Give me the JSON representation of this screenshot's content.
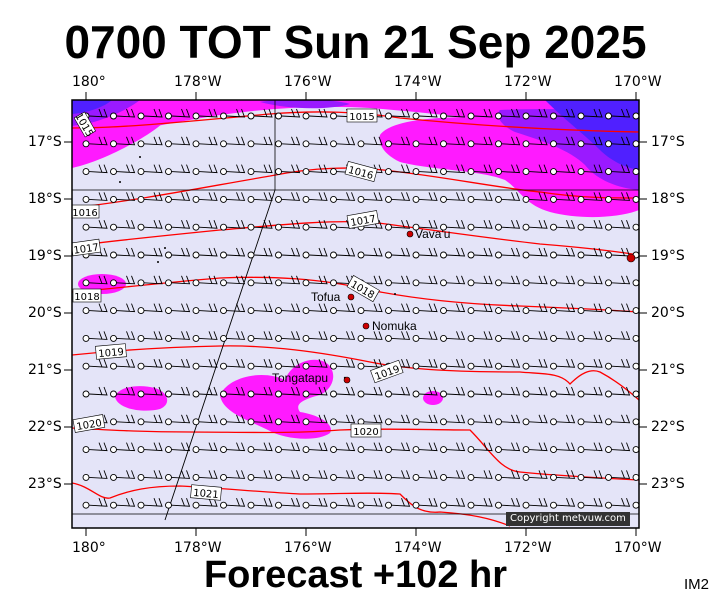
{
  "title": "0700 TOT Sun 21 Sep 2025",
  "forecast_label": "Forecast +102 hr",
  "image_tag": "IM2",
  "copyright": "Copyright metvuw.com",
  "lon_labels": [
    "180°",
    "178°W",
    "176°W",
    "174°W",
    "172°W",
    "170°W"
  ],
  "lat_labels": [
    "17°S",
    "18°S",
    "19°S",
    "20°S",
    "21°S",
    "22°S",
    "23°S"
  ],
  "places": [
    {
      "name": "Vava'u"
    },
    {
      "name": "Tofua"
    },
    {
      "name": "Nomuka"
    },
    {
      "name": "Tongatapu"
    }
  ],
  "isobar_labels": [
    "1015",
    "1015",
    "1016",
    "1016",
    "1017",
    "1017",
    "1018",
    "1018",
    "1019",
    "1019",
    "1020",
    "1020",
    "1021"
  ],
  "colors": {
    "background": "#e4e4f8",
    "precip_light": "#ff1aff",
    "precip_heavy": "#9a1aff",
    "precip_extreme": "#5020ff",
    "isobar": "#ff0000",
    "place_marker": "#cc0000"
  }
}
